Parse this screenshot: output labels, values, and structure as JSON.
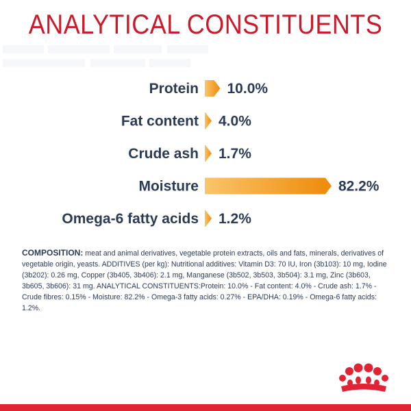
{
  "title": "ANALYTICAL CONSTITUENTS",
  "colors": {
    "title": "#cc1a2a",
    "text": "#2b3a55",
    "bar_light": "#fbc46a",
    "bar_dark": "#ee8a0a",
    "brand_red": "#e02434"
  },
  "chart_data": {
    "type": "bar",
    "orientation": "horizontal",
    "categories": [
      "Protein",
      "Fat content",
      "Crude ash",
      "Moisture",
      "Omega-6 fatty acids"
    ],
    "values": [
      10.0,
      4.0,
      1.7,
      82.2,
      1.2
    ],
    "value_labels": [
      "10.0%",
      "4.0%",
      "1.7%",
      "82.2%",
      "1.2%"
    ],
    "unit": "%",
    "xlim": [
      0,
      100
    ],
    "grid": false,
    "legend": "none"
  },
  "composition": {
    "label": "COMPOSITION:",
    "text": "meat and animal derivatives, vegetable protein extracts, oils and fats, minerals, derivatives of vegetable origin, yeasts. ADDITIVES (per kg): Nutritional additives: Vitamin D3: 70 IU, Iron (3b103): 10 mg, Iodine (3b202): 0.26 mg, Copper (3b405, 3b406): 2.1 mg, Manganese (3b502, 3b503, 3b504): 3.1 mg, Zinc (3b603, 3b605, 3b606): 31 mg. ANALYTICAL CONSTITUENTS:Protein: 10.0% - Fat content: 4.0% - Crude ash: 1.7% - Crude fibres: 0.15% - Moisture: 82.2% - Omega-3 fatty acids: 0.27% - EPA/DHA: 0.19% - Omega-6 fatty acids: 1.2%."
  },
  "logo": {
    "icon": "crown-icon"
  }
}
